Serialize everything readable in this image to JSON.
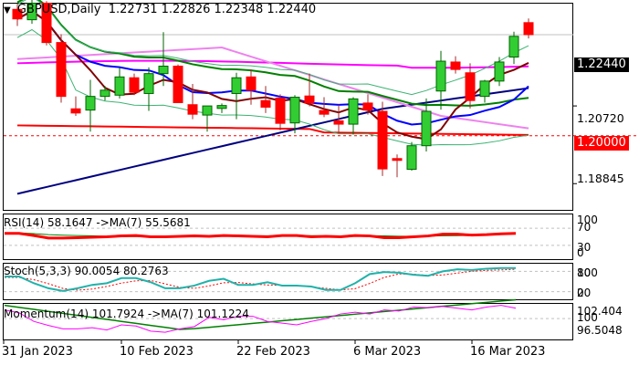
{
  "header": {
    "dropdown_icon": "triangle-down-icon",
    "symbol": "GBPUSD,Daily",
    "ohlc": "1.22731 1.22826 1.22348 1.22440"
  },
  "main_axis": {
    "current_price": "1.22440",
    "level_1": "1.20720",
    "level_2": "1.20000",
    "level_3": "1.18845"
  },
  "rsi": {
    "label": "RSI(14) 58.1647  ->MA(7) 55.5681",
    "axis": [
      "100",
      "70",
      "30",
      "0"
    ]
  },
  "stoch": {
    "label": "Stoch(5,3,3) 90.0054 80.2763",
    "axis": [
      "100",
      "80",
      "20",
      "0"
    ]
  },
  "momentum": {
    "label": "Momentum(14) 101.7924  ->MA(7) 101.1224",
    "axis": [
      "102.404",
      "100",
      "96.5048"
    ]
  },
  "x_axis": {
    "dates": [
      "31 Jan 2023",
      "10 Feb 2023",
      "22 Feb 2023",
      "6 Mar 2023",
      "16 Mar 2023"
    ]
  },
  "colors": {
    "bull": "#32cd32",
    "bear": "#ff0000",
    "bull_wick": "#006400",
    "bear_wick": "#a52a2a",
    "ma_fast": "#800000",
    "ma_blue": "#0000ff",
    "ma_navy": "#000080",
    "ma_green": "#008000",
    "ma_magenta": "#ff00ff",
    "ma_violet": "#ee82ee",
    "ma_red": "#ff0000",
    "bollinger": "#3cb371"
  },
  "chart_data": {
    "type": "candlestick",
    "title": "GBPUSD,Daily",
    "ylim": [
      1.183,
      1.231
    ],
    "y_ticks": [
      1.18845,
      1.2,
      1.2072,
      1.2244
    ],
    "x_tick_labels": [
      "31 Jan 2023",
      "10 Feb 2023",
      "22 Feb 2023",
      "6 Mar 2023",
      "16 Mar 2023"
    ],
    "candles": [
      {
        "o": 1.2305,
        "h": 1.2318,
        "l": 1.2265,
        "c": 1.2282
      },
      {
        "o": 1.228,
        "h": 1.233,
        "l": 1.227,
        "c": 1.232
      },
      {
        "o": 1.232,
        "h": 1.2325,
        "l": 1.2218,
        "c": 1.2225
      },
      {
        "o": 1.2225,
        "h": 1.2245,
        "l": 1.208,
        "c": 1.2095
      },
      {
        "o": 1.2065,
        "h": 1.2095,
        "l": 1.2048,
        "c": 1.2055
      },
      {
        "o": 1.2062,
        "h": 1.2135,
        "l": 1.201,
        "c": 1.2095
      },
      {
        "o": 1.2095,
        "h": 1.212,
        "l": 1.2085,
        "c": 1.211
      },
      {
        "o": 1.2098,
        "h": 1.2165,
        "l": 1.209,
        "c": 1.2142
      },
      {
        "o": 1.214,
        "h": 1.215,
        "l": 1.2098,
        "c": 1.2105
      },
      {
        "o": 1.2102,
        "h": 1.2165,
        "l": 1.206,
        "c": 1.215
      },
      {
        "o": 1.215,
        "h": 1.225,
        "l": 1.212,
        "c": 1.2168
      },
      {
        "o": 1.2168,
        "h": 1.2172,
        "l": 1.208,
        "c": 1.208
      },
      {
        "o": 1.2075,
        "h": 1.2125,
        "l": 1.204,
        "c": 1.2052
      },
      {
        "o": 1.205,
        "h": 1.2072,
        "l": 1.201,
        "c": 1.2072
      },
      {
        "o": 1.2066,
        "h": 1.2078,
        "l": 1.2055,
        "c": 1.2073
      },
      {
        "o": 1.2102,
        "h": 1.2152,
        "l": 1.204,
        "c": 1.214
      },
      {
        "o": 1.2142,
        "h": 1.216,
        "l": 1.2075,
        "c": 1.211
      },
      {
        "o": 1.2085,
        "h": 1.212,
        "l": 1.2055,
        "c": 1.2069
      },
      {
        "o": 1.2091,
        "h": 1.21,
        "l": 1.2013,
        "c": 1.203
      },
      {
        "o": 1.2031,
        "h": 1.2098,
        "l": 1.2006,
        "c": 1.2093
      },
      {
        "o": 1.2096,
        "h": 1.215,
        "l": 1.2071,
        "c": 1.2079
      },
      {
        "o": 1.2061,
        "h": 1.2093,
        "l": 1.2045,
        "c": 1.2052
      },
      {
        "o": 1.2036,
        "h": 1.2075,
        "l": 1.2007,
        "c": 1.2028
      },
      {
        "o": 1.2028,
        "h": 1.2093,
        "l": 1.2003,
        "c": 1.2089
      },
      {
        "o": 1.2079,
        "h": 1.21,
        "l": 1.2051,
        "c": 1.2062
      },
      {
        "o": 1.2059,
        "h": 1.2082,
        "l": 1.1903,
        "c": 1.192
      },
      {
        "o": 1.1945,
        "h": 1.1955,
        "l": 1.19,
        "c": 1.1942
      },
      {
        "o": 1.1919,
        "h": 1.1985,
        "l": 1.1916,
        "c": 1.1976
      },
      {
        "o": 1.1976,
        "h": 1.209,
        "l": 1.1962,
        "c": 1.2059
      },
      {
        "o": 1.2108,
        "h": 1.2205,
        "l": 1.2063,
        "c": 1.218
      },
      {
        "o": 1.2178,
        "h": 1.2192,
        "l": 1.215,
        "c": 1.216
      },
      {
        "o": 1.2152,
        "h": 1.2175,
        "l": 1.2066,
        "c": 1.2085
      },
      {
        "o": 1.2095,
        "h": 1.2135,
        "l": 1.208,
        "c": 1.2132
      },
      {
        "o": 1.2132,
        "h": 1.219,
        "l": 1.212,
        "c": 1.2178
      },
      {
        "o": 1.219,
        "h": 1.2251,
        "l": 1.2173,
        "c": 1.224
      },
      {
        "o": 1.2273,
        "h": 1.2283,
        "l": 1.2235,
        "c": 1.2244
      }
    ],
    "current_price": 1.2244,
    "reference_level": 1.2,
    "indicators": {
      "rsi": {
        "value": 58.1647,
        "ma7": 55.5681,
        "levels": [
          70,
          30
        ],
        "range": [
          0,
          100
        ]
      },
      "stochastic": {
        "params": "5,3,3",
        "k": 90.0054,
        "d": 80.2763,
        "levels": [
          80,
          20
        ],
        "range": [
          0,
          100
        ]
      },
      "momentum": {
        "period": 14,
        "value": 101.7924,
        "ma7": 101.1224,
        "range": [
          96.5048,
          102.404
        ],
        "level": 100
      }
    }
  }
}
